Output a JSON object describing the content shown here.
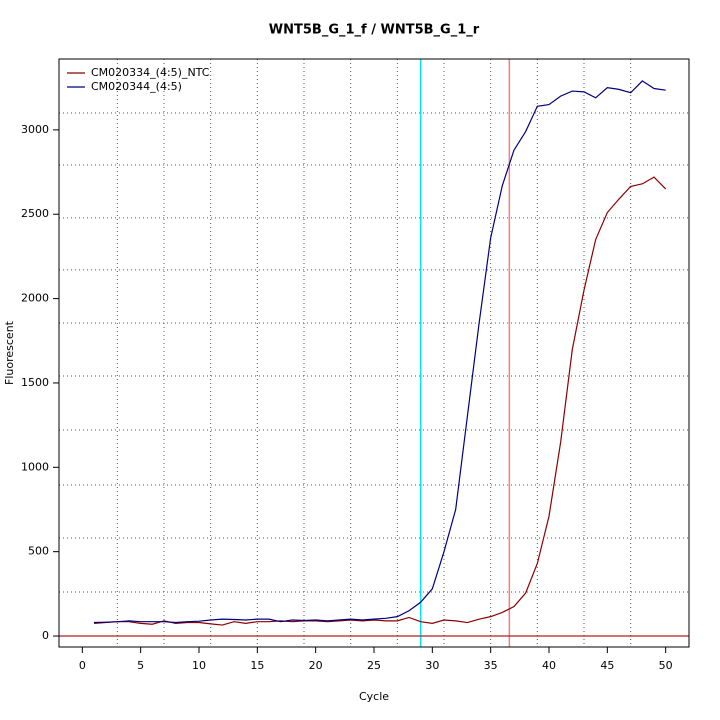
{
  "chart_data": {
    "type": "line",
    "title": "WNT5B_G_1_f / WNT5B_G_1_r",
    "xlabel": "Cycle",
    "ylabel": "Fluorescent",
    "x": [
      1,
      2,
      3,
      4,
      5,
      6,
      7,
      8,
      9,
      10,
      11,
      12,
      13,
      14,
      15,
      16,
      17,
      18,
      19,
      20,
      21,
      22,
      23,
      24,
      25,
      26,
      27,
      28,
      29,
      30,
      31,
      32,
      33,
      34,
      35,
      36,
      37,
      38,
      39,
      40,
      41,
      42,
      43,
      44,
      45,
      46,
      47,
      48,
      49,
      50
    ],
    "series": [
      {
        "name": "CM020334_(4:5)_NTC",
        "color": "#8b0000",
        "values": [
          75,
          80,
          85,
          85,
          75,
          70,
          90,
          75,
          80,
          80,
          72,
          65,
          85,
          75,
          85,
          85,
          90,
          85,
          90,
          90,
          85,
          90,
          95,
          90,
          95,
          90,
          90,
          110,
          85,
          75,
          95,
          90,
          80,
          100,
          115,
          140,
          175,
          255,
          430,
          710,
          1150,
          1700,
          2050,
          2350,
          2510,
          2590,
          2665,
          2680,
          2720,
          2650
        ]
      },
      {
        "name": "CM020344_(4:5)",
        "color": "#000080",
        "values": [
          80,
          82,
          85,
          90,
          85,
          85,
          85,
          80,
          85,
          88,
          95,
          100,
          98,
          95,
          100,
          100,
          85,
          95,
          92,
          95,
          90,
          95,
          100,
          95,
          100,
          105,
          115,
          150,
          200,
          280,
          500,
          750,
          1300,
          1850,
          2360,
          2670,
          2880,
          2990,
          3140,
          3150,
          3200,
          3230,
          3225,
          3190,
          3250,
          3240,
          3220,
          3290,
          3245,
          3235
        ]
      }
    ],
    "xlim": [
      -2,
      52
    ],
    "ylim": [
      -65,
      3420
    ],
    "xticks": [
      0,
      5,
      10,
      15,
      20,
      25,
      30,
      35,
      40,
      45,
      50
    ],
    "yticks": [
      0,
      500,
      1000,
      1500,
      2000,
      2500,
      3000
    ],
    "xgrid": [
      3,
      7,
      11,
      15,
      19,
      23,
      27,
      31,
      35,
      39,
      43,
      47
    ],
    "ygrid": [
      261,
      581,
      895,
      1221,
      1541,
      1855,
      2170,
      2478,
      2792,
      3100
    ],
    "vlines": [
      {
        "value": 29.0,
        "color": "#00e5ee"
      },
      {
        "value": 36.6,
        "color": "#f08080"
      }
    ],
    "hline": {
      "value": 0,
      "color": "#b22222"
    },
    "legend": "top-left"
  }
}
